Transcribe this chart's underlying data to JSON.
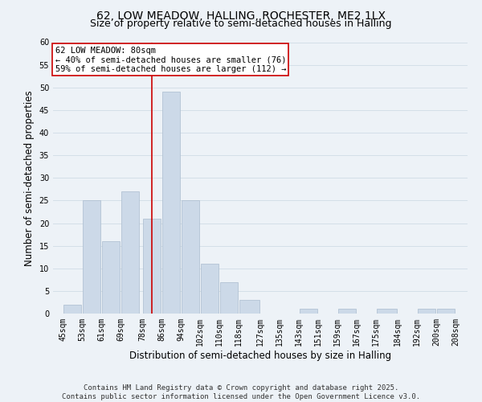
{
  "title_line1": "62, LOW MEADOW, HALLING, ROCHESTER, ME2 1LX",
  "title_line2": "Size of property relative to semi-detached houses in Halling",
  "xlabel": "Distribution of semi-detached houses by size in Halling",
  "ylabel": "Number of semi-detached properties",
  "bar_left_edges": [
    45,
    53,
    61,
    69,
    78,
    86,
    94,
    102,
    110,
    118,
    127,
    135,
    143,
    151,
    159,
    167,
    175,
    184,
    192,
    200
  ],
  "bar_widths": [
    8,
    8,
    8,
    8,
    8,
    8,
    8,
    8,
    8,
    9,
    8,
    8,
    8,
    8,
    8,
    8,
    9,
    8,
    8,
    8
  ],
  "bar_heights": [
    2,
    25,
    16,
    27,
    21,
    49,
    25,
    11,
    7,
    3,
    0,
    0,
    1,
    0,
    1,
    0,
    1,
    0,
    1,
    1
  ],
  "tick_labels": [
    "45sqm",
    "53sqm",
    "61sqm",
    "69sqm",
    "78sqm",
    "86sqm",
    "94sqm",
    "102sqm",
    "110sqm",
    "118sqm",
    "127sqm",
    "135sqm",
    "143sqm",
    "151sqm",
    "159sqm",
    "167sqm",
    "175sqm",
    "184sqm",
    "192sqm",
    "200sqm",
    "208sqm"
  ],
  "tick_positions": [
    45,
    53,
    61,
    69,
    78,
    86,
    94,
    102,
    110,
    118,
    127,
    135,
    143,
    151,
    159,
    167,
    175,
    184,
    192,
    200,
    208
  ],
  "bar_color": "#ccd9e8",
  "bar_edge_color": "#aabcce",
  "grid_color": "#d4dfe8",
  "bg_color": "#edf2f7",
  "vline_x": 82,
  "vline_color": "#cc0000",
  "annotation_title": "62 LOW MEADOW: 80sqm",
  "annotation_line1": "← 40% of semi-detached houses are smaller (76)",
  "annotation_line2": "59% of semi-detached houses are larger (112) →",
  "annotation_box_color": "#ffffff",
  "annotation_box_edge": "#cc0000",
  "ylim": [
    0,
    60
  ],
  "yticks": [
    0,
    5,
    10,
    15,
    20,
    25,
    30,
    35,
    40,
    45,
    50,
    55,
    60
  ],
  "footnote_line1": "Contains HM Land Registry data © Crown copyright and database right 2025.",
  "footnote_line2": "Contains public sector information licensed under the Open Government Licence v3.0.",
  "title_fontsize": 10,
  "subtitle_fontsize": 9,
  "axis_label_fontsize": 8.5,
  "tick_fontsize": 7,
  "annotation_fontsize": 7.5,
  "footnote_fontsize": 6.5
}
